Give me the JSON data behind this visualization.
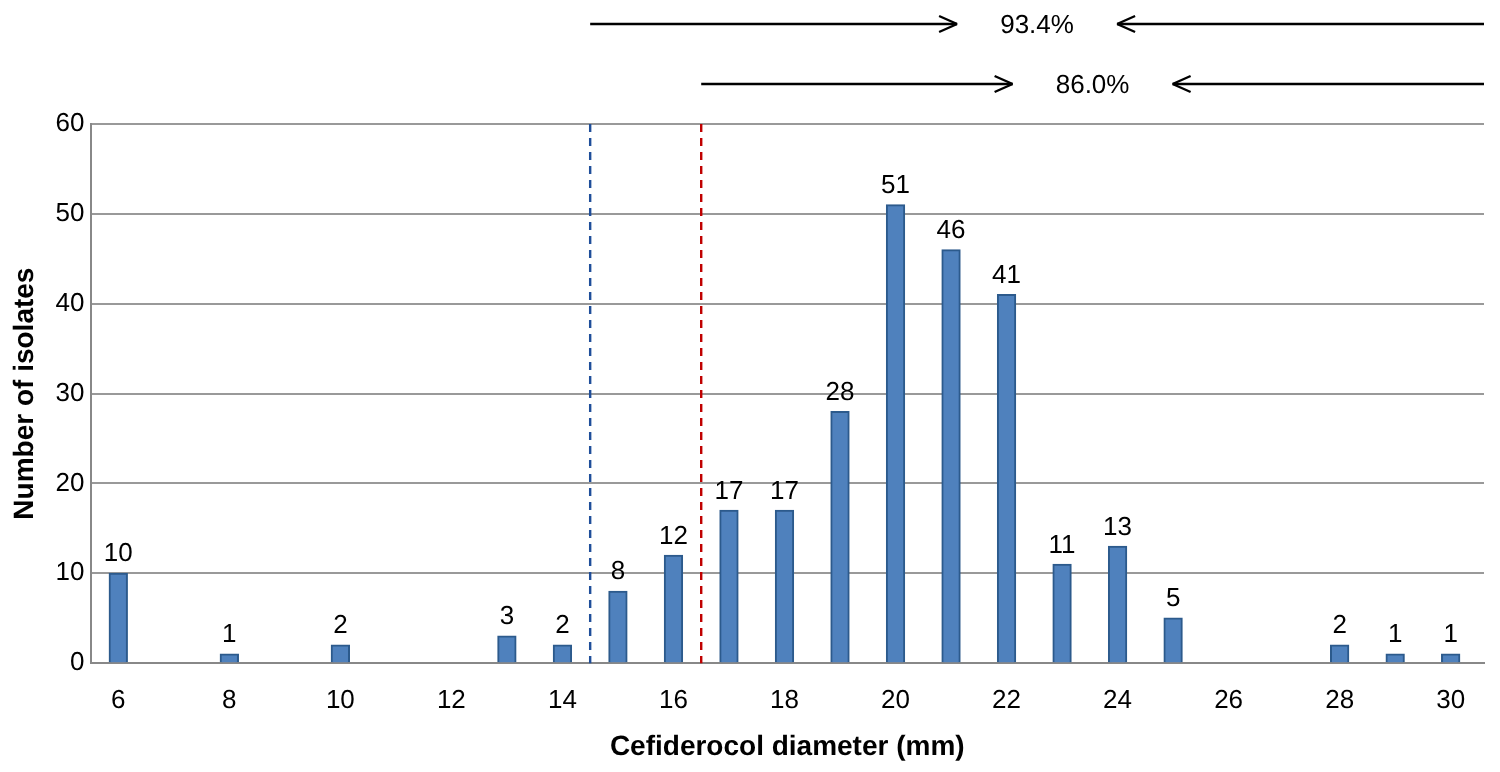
{
  "chart_data": {
    "type": "bar",
    "xlabel": "Cefiderocol diameter (mm)",
    "ylabel": "Number of isolates",
    "x": [
      6,
      8,
      10,
      13,
      14,
      15,
      16,
      17,
      18,
      19,
      20,
      21,
      22,
      23,
      24,
      25,
      28,
      29,
      30
    ],
    "values": [
      10,
      1,
      2,
      3,
      2,
      8,
      12,
      17,
      17,
      28,
      51,
      46,
      41,
      11,
      13,
      5,
      2,
      1,
      1
    ],
    "color": "#4f81bd",
    "data_labels": true,
    "xlim": [
      5.5,
      30.6
    ],
    "xticks": [
      6,
      8,
      10,
      12,
      14,
      16,
      18,
      20,
      22,
      24,
      26,
      28,
      30
    ],
    "ylim": [
      0,
      60
    ],
    "yticks": [
      0,
      10,
      20,
      30,
      40,
      50,
      60
    ],
    "grid": "y",
    "legend": false,
    "ref_lines": [
      {
        "axis": "x",
        "value": 14.5,
        "color": "#1f4e9a",
        "line_style": "dashed"
      },
      {
        "axis": "x",
        "value": 16.5,
        "color": "#c00000",
        "line_style": "dashed"
      }
    ],
    "annotations": [
      "93.4%",
      "86.0%"
    ]
  }
}
